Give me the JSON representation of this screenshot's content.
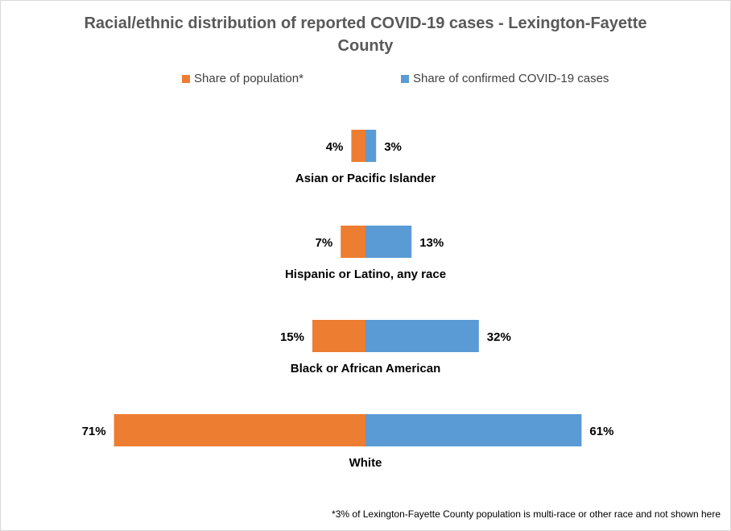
{
  "chart_data": {
    "type": "bar",
    "orientation": "horizontal",
    "layout": "diverging",
    "title": "Racial/ethnic distribution of reported COVID-19 cases -  Lexington-Fayette County",
    "categories": [
      "Asian or Pacific Islander",
      "Hispanic or Latino, any race",
      "Black or African American",
      "White"
    ],
    "series": [
      {
        "name": "Share of population*",
        "color": "#ED7D31",
        "values": [
          4,
          7,
          15,
          71
        ],
        "labels": [
          "4%",
          "7%",
          "15%",
          "71%"
        ]
      },
      {
        "name": "Share of confirmed COVID-19 cases",
        "color": "#5B9BD5",
        "values": [
          3,
          13,
          32,
          61
        ],
        "labels": [
          "3%",
          "13%",
          "32%",
          "61%"
        ]
      }
    ],
    "unit": "%",
    "grid": false,
    "legend_position": "top"
  },
  "footnote": "*3% of Lexington-Fayette County population is multi-race or other race and not shown here"
}
